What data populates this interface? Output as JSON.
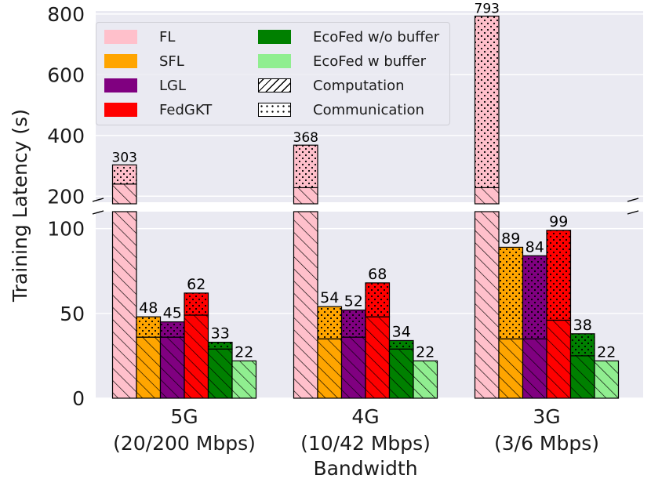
{
  "chart_data": {
    "type": "bar",
    "stacked": true,
    "broken_y_axis": true,
    "ylabel": "Training Latency (s)",
    "xlabel": "Bandwidth",
    "categories": [
      {
        "line1": "5G",
        "line2": "(20/200 Mbps)"
      },
      {
        "line1": "4G",
        "line2": "(10/42 Mbps)"
      },
      {
        "line1": "3G",
        "line2": "(3/6 Mbps)"
      }
    ],
    "lower_axis": {
      "ylim": [
        0,
        110
      ],
      "ticks": [
        "0",
        "50",
        "100"
      ]
    },
    "upper_axis": {
      "ylim": [
        180,
        810
      ],
      "ticks": [
        "200",
        "400",
        "600",
        "800"
      ]
    },
    "grid": true,
    "legend_position": "top-left",
    "series": [
      {
        "name": "FL",
        "color": "#ffc0cb",
        "computation": [
          240,
          228,
          228
        ],
        "communication": [
          63,
          140,
          565
        ],
        "totals": [
          303,
          368,
          793
        ]
      },
      {
        "name": "SFL",
        "color": "#ffa500",
        "computation": [
          36,
          35,
          35
        ],
        "communication": [
          12,
          19,
          54
        ],
        "totals": [
          48,
          54,
          89
        ]
      },
      {
        "name": "LGL",
        "color": "#800080",
        "computation": [
          36,
          36,
          35
        ],
        "communication": [
          9,
          16,
          49
        ],
        "totals": [
          45,
          52,
          84
        ]
      },
      {
        "name": "FedGKT",
        "color": "#ff0000",
        "computation": [
          49,
          48,
          46
        ],
        "communication": [
          13,
          20,
          53
        ],
        "totals": [
          62,
          68,
          99
        ]
      },
      {
        "name": "EcoFed w/o buffer",
        "color": "#008000",
        "computation": [
          29,
          29,
          25
        ],
        "communication": [
          4,
          5,
          13
        ],
        "totals": [
          33,
          34,
          38
        ]
      },
      {
        "name": "EcoFed w buffer",
        "color": "#90ee90",
        "computation": [
          22,
          22,
          22
        ],
        "communication": [
          0,
          0,
          0
        ],
        "totals": [
          22,
          22,
          22
        ]
      }
    ],
    "hatch_legend": [
      {
        "name": "Computation",
        "pattern": "hatch"
      },
      {
        "name": "Communication",
        "pattern": "dots"
      }
    ]
  }
}
